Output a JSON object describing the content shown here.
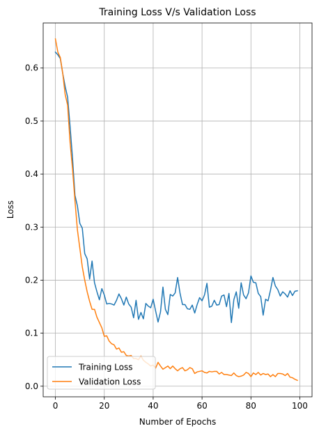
{
  "chart_data": {
    "type": "line",
    "title": "Training Loss V/s Validation Loss",
    "xlabel": "Number of Epochs",
    "ylabel": "Loss",
    "xlim": [
      -5,
      105
    ],
    "ylim": [
      -0.02,
      0.685
    ],
    "xticks": [
      0,
      20,
      40,
      60,
      80,
      100
    ],
    "xtick_labels": [
      "0",
      "20",
      "40",
      "60",
      "80",
      "100"
    ],
    "yticks": [
      0.0,
      0.1,
      0.2,
      0.3,
      0.4,
      0.5,
      0.6
    ],
    "ytick_labels": [
      "0.0",
      "0.1",
      "0.2",
      "0.3",
      "0.4",
      "0.5",
      "0.6"
    ],
    "grid": true,
    "legend_position": "lower-left",
    "series": [
      {
        "name": "Training Loss",
        "color": "#1f77b4",
        "x": [
          0,
          1,
          2,
          3,
          4,
          5,
          6,
          7,
          8,
          9,
          10,
          11,
          12,
          13,
          14,
          15,
          16,
          17,
          18,
          19,
          20,
          21,
          22,
          23,
          24,
          25,
          26,
          27,
          28,
          29,
          30,
          31,
          32,
          33,
          34,
          35,
          36,
          37,
          38,
          39,
          40,
          41,
          42,
          43,
          44,
          45,
          46,
          47,
          48,
          49,
          50,
          51,
          52,
          53,
          54,
          55,
          56,
          57,
          58,
          59,
          60,
          61,
          62,
          63,
          64,
          65,
          66,
          67,
          68,
          69,
          70,
          71,
          72,
          73,
          74,
          75,
          76,
          77,
          78,
          79,
          80,
          81,
          82,
          83,
          84,
          85,
          86,
          87,
          88,
          89,
          90,
          91,
          92,
          93,
          94,
          95,
          96,
          97,
          98,
          99
        ],
        "values": [
          0.63,
          0.625,
          0.618,
          0.59,
          0.565,
          0.545,
          0.49,
          0.43,
          0.36,
          0.34,
          0.307,
          0.298,
          0.25,
          0.24,
          0.202,
          0.236,
          0.195,
          0.178,
          0.163,
          0.184,
          0.172,
          0.155,
          0.156,
          0.155,
          0.153,
          0.162,
          0.174,
          0.165,
          0.153,
          0.168,
          0.155,
          0.149,
          0.129,
          0.162,
          0.126,
          0.139,
          0.127,
          0.156,
          0.151,
          0.148,
          0.164,
          0.142,
          0.121,
          0.14,
          0.187,
          0.145,
          0.135,
          0.173,
          0.17,
          0.176,
          0.205,
          0.175,
          0.154,
          0.154,
          0.146,
          0.145,
          0.153,
          0.138,
          0.154,
          0.167,
          0.161,
          0.172,
          0.194,
          0.149,
          0.151,
          0.162,
          0.153,
          0.154,
          0.17,
          0.172,
          0.15,
          0.175,
          0.12,
          0.163,
          0.178,
          0.147,
          0.195,
          0.172,
          0.165,
          0.176,
          0.208,
          0.196,
          0.195,
          0.175,
          0.169,
          0.134,
          0.164,
          0.161,
          0.181,
          0.205,
          0.189,
          0.182,
          0.17,
          0.178,
          0.174,
          0.168,
          0.18,
          0.171,
          0.179,
          0.18
        ]
      },
      {
        "name": "Validation Loss",
        "color": "#ff7f0e",
        "x": [
          0,
          1,
          2,
          3,
          4,
          5,
          6,
          7,
          8,
          9,
          10,
          11,
          12,
          13,
          14,
          15,
          16,
          17,
          18,
          19,
          20,
          21,
          22,
          23,
          24,
          25,
          26,
          27,
          28,
          29,
          30,
          31,
          32,
          33,
          34,
          35,
          36,
          37,
          38,
          39,
          40,
          41,
          42,
          43,
          44,
          45,
          46,
          47,
          48,
          49,
          50,
          51,
          52,
          53,
          54,
          55,
          56,
          57,
          58,
          59,
          60,
          61,
          62,
          63,
          64,
          65,
          66,
          67,
          68,
          69,
          70,
          71,
          72,
          73,
          74,
          75,
          76,
          77,
          78,
          79,
          80,
          81,
          82,
          83,
          84,
          85,
          86,
          87,
          88,
          89,
          90,
          91,
          92,
          93,
          94,
          95,
          96,
          97,
          98,
          99
        ],
        "values": [
          0.655,
          0.63,
          0.62,
          0.59,
          0.55,
          0.53,
          0.46,
          0.41,
          0.35,
          0.295,
          0.26,
          0.225,
          0.2,
          0.178,
          0.16,
          0.145,
          0.145,
          0.13,
          0.12,
          0.11,
          0.094,
          0.095,
          0.085,
          0.08,
          0.078,
          0.07,
          0.072,
          0.064,
          0.065,
          0.058,
          0.057,
          0.058,
          0.052,
          0.052,
          0.05,
          0.057,
          0.049,
          0.045,
          0.042,
          0.038,
          0.04,
          0.034,
          0.045,
          0.038,
          0.032,
          0.035,
          0.038,
          0.033,
          0.038,
          0.033,
          0.029,
          0.033,
          0.035,
          0.029,
          0.031,
          0.035,
          0.033,
          0.024,
          0.027,
          0.028,
          0.029,
          0.026,
          0.025,
          0.028,
          0.027,
          0.028,
          0.028,
          0.023,
          0.026,
          0.022,
          0.022,
          0.021,
          0.02,
          0.025,
          0.02,
          0.018,
          0.019,
          0.021,
          0.026,
          0.024,
          0.018,
          0.025,
          0.022,
          0.026,
          0.021,
          0.024,
          0.022,
          0.023,
          0.018,
          0.022,
          0.018,
          0.024,
          0.024,
          0.023,
          0.02,
          0.024,
          0.017,
          0.016,
          0.013,
          0.011
        ]
      }
    ]
  }
}
